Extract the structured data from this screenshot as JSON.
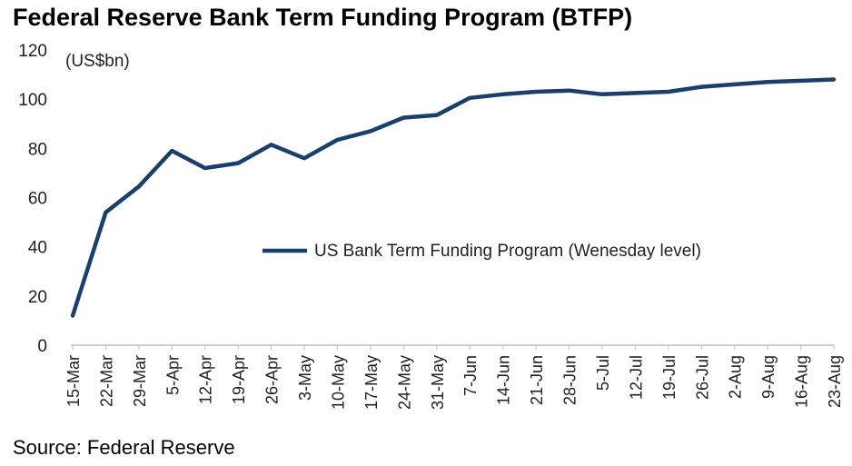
{
  "title": "Federal Reserve Bank Term Funding Program (BTFP)",
  "source": "Source: Federal Reserve",
  "chart_data": {
    "type": "line",
    "title": "Federal Reserve Bank Term Funding Program (BTFP)",
    "unit_label": "(US$bn)",
    "xlabel": "",
    "ylabel": "",
    "ylim": [
      0,
      120
    ],
    "yticks": [
      0,
      20,
      40,
      60,
      80,
      100,
      120
    ],
    "grid": false,
    "legend_position": "center-right",
    "categories": [
      "15-Mar",
      "22-Mar",
      "29-Mar",
      "5-Apr",
      "12-Apr",
      "19-Apr",
      "26-Apr",
      "3-May",
      "10-May",
      "17-May",
      "24-May",
      "31-May",
      "7-Jun",
      "14-Jun",
      "21-Jun",
      "28-Jun",
      "5-Jul",
      "12-Jul",
      "19-Jul",
      "26-Jul",
      "2-Aug",
      "9-Aug",
      "16-Aug",
      "23-Aug"
    ],
    "series": [
      {
        "name": "US Bank Term Funding Program (Wenesday level)",
        "color": "#1b3f6b",
        "values": [
          12,
          54,
          64.5,
          79,
          72,
          74,
          81.5,
          76,
          83.5,
          87,
          92.5,
          93.5,
          100.5,
          102,
          103,
          103.5,
          102,
          102.5,
          103,
          105,
          106,
          107,
          107.5,
          108
        ]
      }
    ]
  }
}
